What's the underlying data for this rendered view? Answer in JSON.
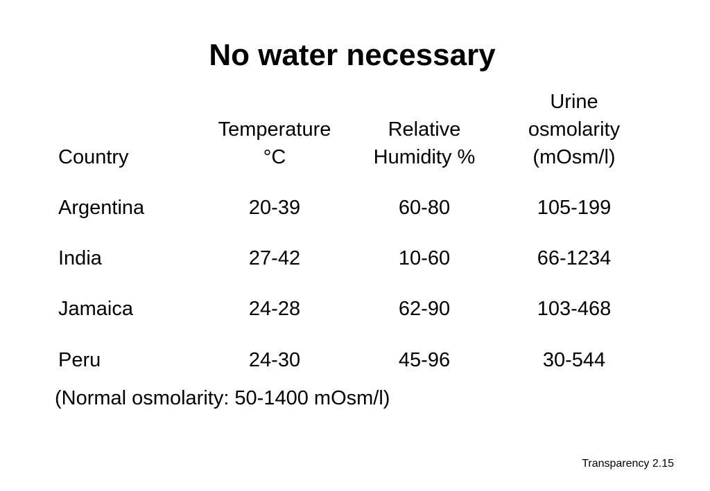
{
  "title": "No water necessary",
  "table": {
    "headers": {
      "country": [
        "Country"
      ],
      "temperature": [
        "Temperature",
        "°C"
      ],
      "humidity": [
        "Relative",
        "Humidity %"
      ],
      "urine": [
        "Urine",
        "osmolarity",
        "(mOsm/l)"
      ]
    },
    "rows": [
      {
        "country": "Argentina",
        "temperature": "20-39",
        "humidity": "60-80",
        "urine": "105-199"
      },
      {
        "country": "India",
        "temperature": "27-42",
        "humidity": "10-60",
        "urine": "66-1234"
      },
      {
        "country": "Jamaica",
        "temperature": "24-28",
        "humidity": "62-90",
        "urine": "103-468"
      },
      {
        "country": "Peru",
        "temperature": "24-30",
        "humidity": "45-96",
        "urine": "30-544"
      }
    ]
  },
  "note": "(Normal osmolarity: 50-1400 mOsm/l)",
  "footer": "Transparency 2.15"
}
